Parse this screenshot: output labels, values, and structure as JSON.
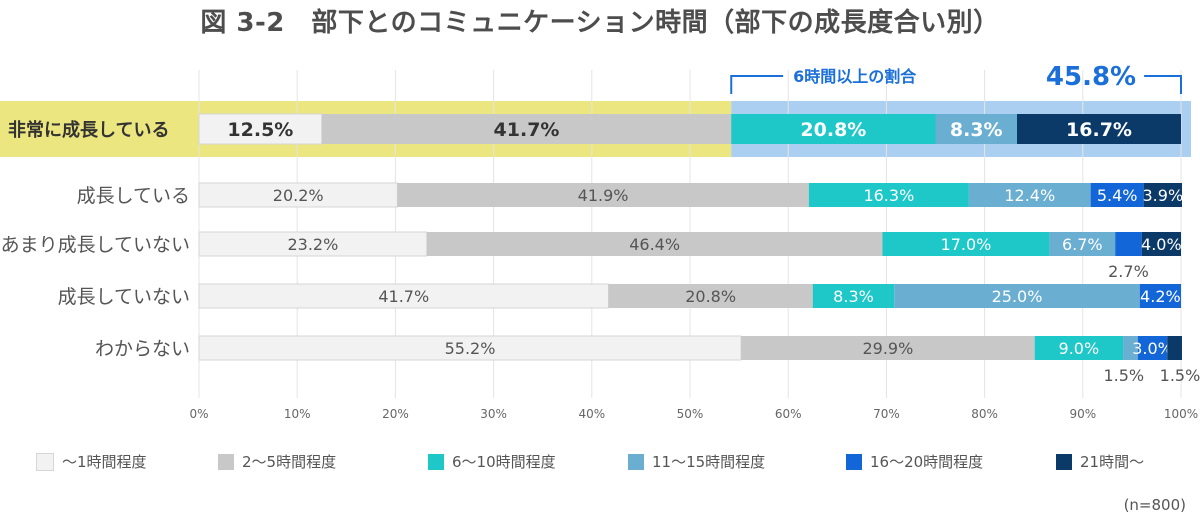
{
  "chart_data": {
    "type": "bar",
    "orientation": "horizontal",
    "stacked": true,
    "title": "図 3-2　部下とのコミュニケーション時間（部下の成長度合い別）",
    "categories": [
      "非常に成長している",
      "成長している",
      "あまり成長していない",
      "成長していない",
      "わからない"
    ],
    "series": [
      {
        "name": "〜1時間程度",
        "color": "#f2f2f2",
        "values": [
          12.5,
          20.2,
          23.2,
          41.7,
          55.2
        ]
      },
      {
        "name": "2〜5時間程度",
        "color": "#c8c8c8",
        "values": [
          41.7,
          41.9,
          46.4,
          20.8,
          29.9
        ]
      },
      {
        "name": "6〜10時間程度",
        "color": "#1ec8c8",
        "values": [
          20.8,
          16.3,
          17.0,
          8.3,
          9.0
        ]
      },
      {
        "name": "11〜15時間程度",
        "color": "#6aaed2",
        "values": [
          8.3,
          12.4,
          6.7,
          25.0,
          1.5
        ]
      },
      {
        "name": "16〜20時間程度",
        "color": "#1266d8",
        "values": [
          0,
          5.4,
          2.7,
          4.2,
          3.0
        ]
      },
      {
        "name": "21時間〜",
        "color": "#0c3a68",
        "values": [
          16.7,
          3.9,
          4.0,
          0,
          1.5
        ]
      }
    ],
    "bar_labels": [
      [
        "12.5%",
        "41.7%",
        "20.8%",
        "8.3%",
        "",
        "16.7%"
      ],
      [
        "20.2%",
        "41.9%",
        "16.3%",
        "12.4%",
        "5.4%",
        "3.9%"
      ],
      [
        "23.2%",
        "46.4%",
        "17.0%",
        "6.7%",
        "2.7%",
        "4.0%"
      ],
      [
        "41.7%",
        "20.8%",
        "8.3%",
        "25.0%",
        "4.2%",
        ""
      ],
      [
        "55.2%",
        "29.9%",
        "9.0%",
        "1.5%",
        "3.0%",
        "1.5%"
      ]
    ],
    "outside_labels": [
      [],
      [],
      [
        4
      ],
      [],
      [
        3,
        5
      ]
    ],
    "highlight": {
      "category_index": 0,
      "label_prefix": "6時間以上の割合",
      "label_value": "45.8%",
      "left_color": "#ece680",
      "right_color": "#aacff0",
      "accent_color": "#1a6fd8"
    },
    "x_ticks": [
      "0%",
      "10%",
      "20%",
      "30%",
      "40%",
      "50%",
      "60%",
      "70%",
      "80%",
      "90%",
      "100%"
    ],
    "xlim": [
      0,
      100
    ],
    "grid": true,
    "legend_position": "bottom",
    "note": "(n=800)"
  }
}
